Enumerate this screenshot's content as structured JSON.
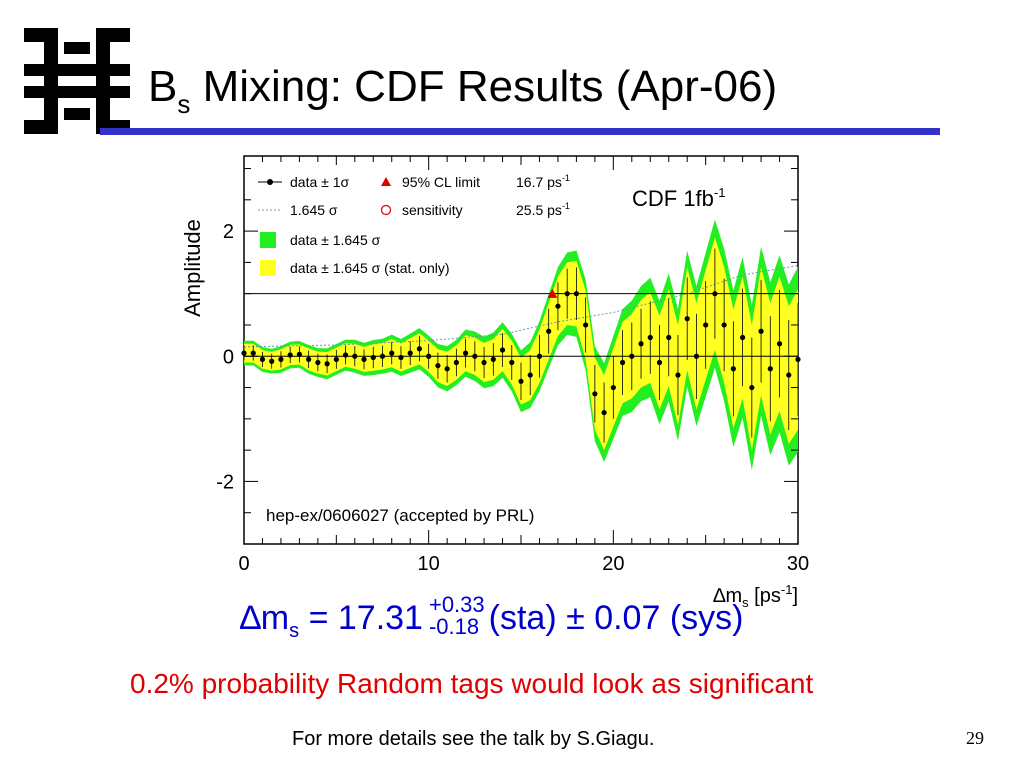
{
  "slide": {
    "title_prefix": "B",
    "title_subscript": "s",
    "title_rest": " Mixing: CDF Results (Apr-06)",
    "page_number": "29",
    "footer": "For more details see the talk by S.Giagu.",
    "accent_color": "#3333cc"
  },
  "result": {
    "symbol": "∆m",
    "symbol_sub": "s",
    "value": " = 17.31",
    "err_plus": "+0.33",
    "err_minus": "-0.18",
    "rest": "(sta) ± 0.07 (sys)",
    "color": "#0000cc"
  },
  "note": {
    "text": "0.2% probability Random tags would look as significant",
    "color": "#e00000"
  },
  "chart_data": {
    "type": "line",
    "ylabel": "Amplitude",
    "xlabel_main": "∆m",
    "xlabel_sub": "s",
    "xlabel_unit": " [ps",
    "xlabel_unit_sup": "-1",
    "xlabel_unit_close": "]",
    "xlim": [
      0,
      30
    ],
    "ylim": [
      -3,
      3.2
    ],
    "xticks": [
      "0",
      "10",
      "20",
      "30"
    ],
    "yticks": [
      "2",
      "0",
      "-2"
    ],
    "tag": "CDF 1fb",
    "tag_sup": "-1",
    "reference": "hep-ex/0606027 (accepted by PRL)",
    "reference_lines": [
      0,
      1
    ],
    "legend": [
      {
        "marker": "dot-line",
        "label": "data ± 1σ"
      },
      {
        "marker": "dotted-line",
        "label": "1.645 σ"
      },
      {
        "marker": "green-box",
        "label": "data ± 1.645 σ"
      },
      {
        "marker": "yellow-box",
        "label": "data ± 1.645 σ (stat. only)"
      }
    ],
    "legend_right": [
      {
        "marker": "triangle",
        "label": "95% CL limit",
        "value": "16.7 ps",
        "value_sup": "-1"
      },
      {
        "marker": "circle",
        "label": "sensitivity",
        "value": "25.5 ps",
        "value_sup": "-1"
      }
    ],
    "colors": {
      "green": "#22ee22",
      "yellow": "#ffff22",
      "data": "#000000",
      "limit": "#dd0000"
    },
    "limit_x": 16.7,
    "limit_y": 0.98,
    "series": [
      {
        "name": "data ± 1σ",
        "x": [
          0,
          0.5,
          1,
          1.5,
          2,
          2.5,
          3,
          3.5,
          4,
          4.5,
          5,
          5.5,
          6,
          6.5,
          7,
          7.5,
          8,
          8.5,
          9,
          9.5,
          10,
          10.5,
          11,
          11.5,
          12,
          12.5,
          13,
          13.5,
          14,
          14.5,
          15,
          15.5,
          16,
          16.5,
          17,
          17.5,
          18,
          18.5,
          19,
          19.5,
          20,
          20.5,
          21,
          21.5,
          22,
          22.5,
          23,
          23.5,
          24,
          24.5,
          25,
          25.5,
          26,
          26.5,
          27,
          27.5,
          28,
          28.5,
          29,
          29.5,
          30
        ],
        "y": [
          0.05,
          0.05,
          -0.05,
          -0.08,
          -0.05,
          0.02,
          0.03,
          -0.05,
          -0.1,
          -0.12,
          -0.05,
          0.02,
          0.0,
          -0.05,
          -0.02,
          0.0,
          0.05,
          -0.02,
          0.05,
          0.12,
          0.0,
          -0.15,
          -0.2,
          -0.1,
          0.05,
          0.0,
          -0.1,
          -0.05,
          0.1,
          -0.1,
          -0.4,
          -0.3,
          0.0,
          0.4,
          0.8,
          1.0,
          1.0,
          0.5,
          -0.6,
          -0.9,
          -0.5,
          -0.1,
          0.0,
          0.2,
          0.3,
          -0.1,
          0.3,
          -0.3,
          0.6,
          0.0,
          0.5,
          1.0,
          0.5,
          -0.2,
          0.3,
          -0.5,
          0.4,
          -0.2,
          0.2,
          -0.3,
          -0.05
        ],
        "err": [
          0.12,
          0.12,
          0.12,
          0.12,
          0.13,
          0.13,
          0.13,
          0.14,
          0.14,
          0.15,
          0.15,
          0.15,
          0.16,
          0.16,
          0.17,
          0.17,
          0.18,
          0.18,
          0.19,
          0.2,
          0.2,
          0.21,
          0.22,
          0.22,
          0.23,
          0.24,
          0.25,
          0.26,
          0.27,
          0.28,
          0.3,
          0.32,
          0.34,
          0.36,
          0.38,
          0.4,
          0.42,
          0.44,
          0.46,
          0.48,
          0.5,
          0.52,
          0.54,
          0.56,
          0.58,
          0.6,
          0.62,
          0.64,
          0.66,
          0.68,
          0.7,
          0.72,
          0.74,
          0.76,
          0.78,
          0.8,
          0.82,
          0.84,
          0.86,
          0.88,
          0.9
        ]
      },
      {
        "name": "1.645 σ",
        "x": [
          0,
          5,
          10,
          14,
          17,
          20,
          24,
          27,
          30
        ],
        "y": [
          0.15,
          0.18,
          0.25,
          0.35,
          0.55,
          0.7,
          1.0,
          1.3,
          1.45
        ]
      }
    ]
  }
}
